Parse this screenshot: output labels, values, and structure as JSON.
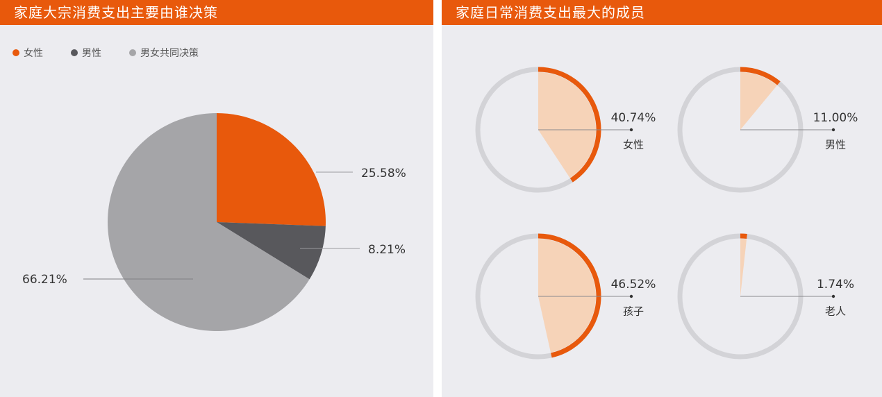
{
  "colors": {
    "header": "#e8590c",
    "accent": "#e8590c",
    "dark": "#58585c",
    "gray": "#a5a5a8",
    "ring": "#d3d3d7",
    "fill_light": "#f6d3b8"
  },
  "chart_data": [
    {
      "type": "pie",
      "title": "家庭大宗消费支出主要由谁决策",
      "legend_position": "top-left",
      "legend": [
        "女性",
        "男性",
        "男女共同决策"
      ],
      "slices": [
        {
          "label": "女性",
          "value": 25.58,
          "display": "25.58%"
        },
        {
          "label": "男性",
          "value": 8.21,
          "display": "8.21%"
        },
        {
          "label": "男女共同决策",
          "value": 66.21,
          "display": "66.21%"
        }
      ]
    },
    {
      "type": "pie",
      "title": "家庭日常消费支出最大的成员",
      "items": [
        {
          "label": "女性",
          "value": 40.74,
          "display": "40.74%"
        },
        {
          "label": "男性",
          "value": 11.0,
          "display": "11.00%"
        },
        {
          "label": "孩子",
          "value": 46.52,
          "display": "46.52%"
        },
        {
          "label": "老人",
          "value": 1.74,
          "display": "1.74%"
        }
      ]
    }
  ]
}
